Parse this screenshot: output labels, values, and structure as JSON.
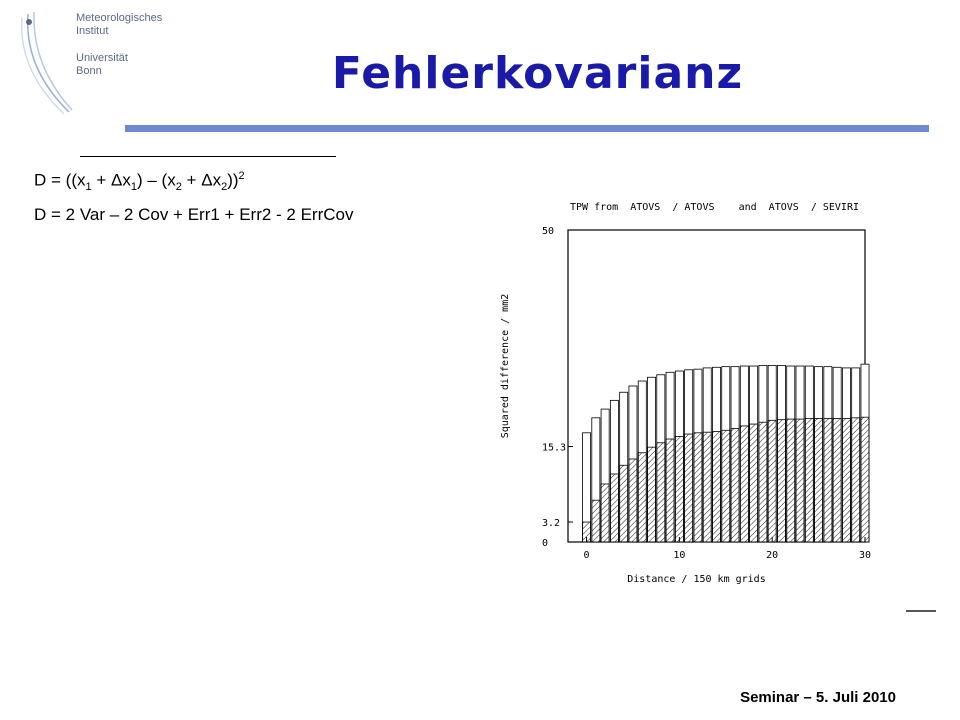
{
  "slide": {
    "title": "Fehlerkovarianz",
    "footer": "Seminar – 5. Juli 2010",
    "accent_color": "#1a1aa8",
    "rule_color": "#6f88cf"
  },
  "logo": {
    "line1": "Meteorologisches",
    "line2": "Institut",
    "line3": "Universität",
    "line4": "Bonn"
  },
  "equations": {
    "eq1": {
      "lhs": "D = ",
      "p1": "((x",
      "s1": "1",
      "p2": " + ",
      "delta1": "Δ",
      "p3": "x",
      "s2": "1",
      "p4": ") – (x",
      "s3": "2",
      "p5": " + ",
      "delta2": "Δ",
      "p6": "x",
      "s4": "2",
      "p7": "))",
      "sup": "2"
    },
    "eq2": "D = 2 Var – 2 Cov + Err1 + Err2 - 2 ErrCov"
  },
  "chart_data": {
    "type": "bar",
    "title": "TPW from  ATOVS  / ATOVS    and  ATOVS  / SEVIRI",
    "xlabel": "Distance / 150 km grids",
    "ylabel": "Squared difference / mm2",
    "xlim": [
      -2,
      30
    ],
    "ylim": [
      0,
      50
    ],
    "xticks": [
      "0",
      "10",
      "20",
      "30"
    ],
    "yticks": [
      "0",
      "3.2",
      "15.3",
      "50"
    ],
    "x": [
      0,
      1,
      2,
      3,
      4,
      5,
      6,
      7,
      8,
      9,
      10,
      11,
      12,
      13,
      14,
      15,
      16,
      17,
      18,
      19,
      20,
      21,
      22,
      23,
      24,
      25,
      26,
      27,
      28,
      29,
      30
    ],
    "series": [
      {
        "name": "ATOVS / ATOVS",
        "style": "open",
        "values": [
          17.5,
          19.9,
          21.3,
          22.7,
          24.0,
          25.0,
          25.8,
          26.4,
          26.8,
          27.2,
          27.4,
          27.6,
          27.7,
          27.9,
          28.0,
          28.1,
          28.1,
          28.2,
          28.2,
          28.3,
          28.3,
          28.3,
          28.2,
          28.2,
          28.2,
          28.1,
          28.1,
          28.0,
          27.9,
          27.9,
          28.5
        ]
      },
      {
        "name": "ATOVS / SEVIRI",
        "style": "hatched",
        "values": [
          3.2,
          6.7,
          9.3,
          10.9,
          12.3,
          13.3,
          14.3,
          15.2,
          15.9,
          16.5,
          16.9,
          17.3,
          17.5,
          17.6,
          17.7,
          17.9,
          18.2,
          18.6,
          18.9,
          19.2,
          19.5,
          19.6,
          19.7,
          19.7,
          19.8,
          19.8,
          19.8,
          19.8,
          19.8,
          19.9,
          20.0
        ]
      }
    ],
    "grid": false
  }
}
